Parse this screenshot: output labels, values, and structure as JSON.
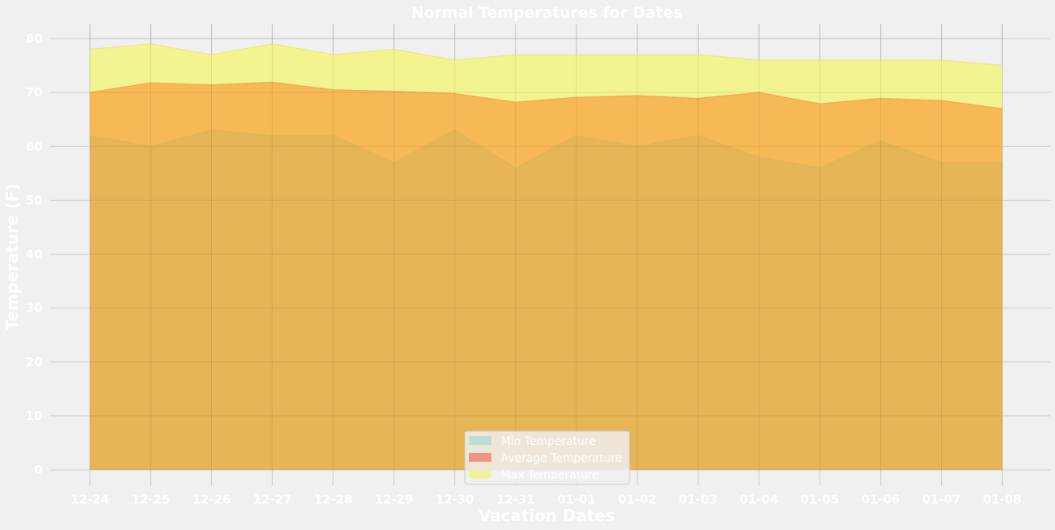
{
  "chart_data": {
    "type": "area",
    "title": "Normal Temperatures for Dates",
    "xlabel": "Vacation Dates",
    "ylabel": "Temperature (F)",
    "categories": [
      "12-24",
      "12-25",
      "12-26",
      "12-27",
      "12-28",
      "12-29",
      "12-30",
      "12-31",
      "01-01",
      "01-02",
      "01-03",
      "01-04",
      "01-05",
      "01-06",
      "01-07",
      "01-08"
    ],
    "ylim": [
      0,
      83
    ],
    "yticks": [
      0,
      10,
      20,
      30,
      40,
      50,
      60,
      70,
      80
    ],
    "stacked": false,
    "grid": true,
    "legend_position": "bottom-center",
    "series": [
      {
        "name": "Min Temperature",
        "color": "#a8d8d8",
        "values": [
          62,
          60,
          63,
          62,
          62,
          57,
          63,
          56,
          62,
          60,
          62,
          58,
          56,
          61,
          57,
          57
        ]
      },
      {
        "name": "Average Temperature",
        "color": "#f0705a",
        "values": [
          70,
          71.8,
          71.4,
          71.9,
          70.5,
          70.2,
          69.8,
          68.2,
          69.1,
          69.4,
          68.9,
          70,
          67.9,
          68.9,
          68.5,
          67
        ]
      },
      {
        "name": "Max Temperature",
        "color": "#f2f27a",
        "values": [
          78,
          79,
          77,
          79,
          77,
          78,
          76,
          77,
          77,
          77,
          77,
          76,
          76,
          76,
          76,
          75
        ]
      }
    ],
    "fill_colors": {
      "min_visible": "#e5b556",
      "avg_visible": "#f6b955",
      "max_visible": "#f2f48f"
    },
    "background": "#f0f0f0",
    "text_color": "#ffffff"
  }
}
